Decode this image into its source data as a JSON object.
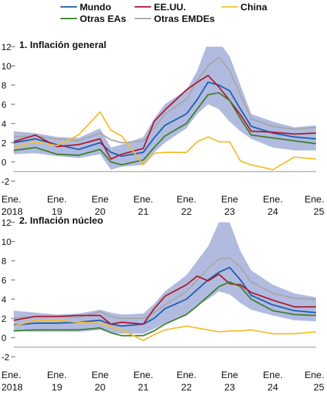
{
  "legend": {
    "world": "Mundo",
    "us": "EE.UU.",
    "china": "China",
    "other_aes": "Otras EAs",
    "other_emdes": "Otras EMDEs"
  },
  "colors": {
    "world": "#1f5fad",
    "us": "#b01b2e",
    "china": "#f2bf36",
    "other_aes": "#3f7f2f",
    "other_emdes": "#a7a7a7",
    "band": "#b1bbe0"
  },
  "x_ticks": [
    {
      "month": "Ene.",
      "year": "2018"
    },
    {
      "month": "Ene.",
      "year": "19"
    },
    {
      "month": "Ene",
      "year": "20"
    },
    {
      "month": "Ene.",
      "year": "21"
    },
    {
      "month": "Ene.",
      "year": "22"
    },
    {
      "month": "Ene",
      "year": "23"
    },
    {
      "month": "Ene.",
      "year": "24"
    },
    {
      "month": "Ene.",
      "year": "25"
    }
  ],
  "chart_data": [
    {
      "type": "line",
      "title": "1. Inflación general",
      "x": [
        "2018-01",
        "2018-07",
        "2019-01",
        "2019-07",
        "2020-01",
        "2020-04",
        "2020-07",
        "2021-01",
        "2021-04",
        "2021-07",
        "2022-01",
        "2022-04",
        "2022-07",
        "2022-10",
        "2023-01",
        "2023-04",
        "2023-07",
        "2024-01",
        "2024-07",
        "2025-01"
      ],
      "ylim": [
        -2,
        12
      ],
      "yticks": [
        -2,
        0,
        2,
        4,
        6,
        8,
        10,
        12
      ],
      "band": {
        "upper": [
          3.2,
          3.0,
          2.6,
          2.5,
          3.5,
          1.5,
          1.8,
          2.6,
          4.5,
          6.0,
          7.5,
          9.5,
          12.5,
          12.5,
          11.0,
          8.0,
          5.0,
          4.2,
          3.6,
          3.8
        ],
        "lower": [
          0.8,
          0.9,
          0.6,
          0.4,
          0.8,
          -0.8,
          -0.5,
          -0.3,
          1.0,
          2.0,
          3.5,
          5.0,
          6.0,
          5.5,
          4.2,
          3.2,
          2.4,
          1.5,
          1.2,
          1.2
        ]
      },
      "series": [
        {
          "name": "Mundo",
          "key": "world",
          "values": [
            2.0,
            2.4,
            1.8,
            1.3,
            2.0,
            1.0,
            0.6,
            1.0,
            2.5,
            3.8,
            5.0,
            6.5,
            8.3,
            8.0,
            7.4,
            5.5,
            3.7,
            3.0,
            2.6,
            2.4
          ]
        },
        {
          "name": "EE.UU.",
          "key": "us",
          "values": [
            2.1,
            2.8,
            1.6,
            1.8,
            2.4,
            0.3,
            0.8,
            1.4,
            4.2,
            5.4,
            7.5,
            8.3,
            9.0,
            7.8,
            6.4,
            4.9,
            3.2,
            3.1,
            2.9,
            3.0
          ]
        },
        {
          "name": "China",
          "key": "china",
          "values": [
            1.5,
            2.1,
            1.7,
            2.8,
            5.2,
            3.3,
            2.7,
            -0.3,
            0.9,
            1.0,
            1.0,
            2.1,
            2.6,
            2.1,
            2.1,
            0.1,
            -0.3,
            -0.8,
            0.5,
            0.3
          ]
        },
        {
          "name": "Otras EAs",
          "key": "other_aes",
          "values": [
            1.2,
            1.5,
            0.8,
            0.7,
            1.3,
            0.0,
            -0.3,
            0.2,
            1.5,
            2.7,
            4.0,
            5.5,
            7.0,
            7.2,
            6.4,
            4.5,
            2.8,
            2.5,
            2.2,
            1.9
          ]
        },
        {
          "name": "Otras EMDEs",
          "key": "other_emdes",
          "values": [
            2.6,
            2.7,
            2.4,
            2.2,
            3.0,
            2.3,
            2.0,
            2.2,
            3.5,
            5.0,
            6.5,
            8.5,
            10.0,
            10.9,
            9.5,
            7.0,
            4.5,
            3.7,
            3.4,
            3.6
          ]
        }
      ]
    },
    {
      "type": "line",
      "title": "2. Inflación núcleo",
      "x": [
        "2018-01",
        "2018-07",
        "2019-01",
        "2019-07",
        "2020-01",
        "2020-04",
        "2020-07",
        "2021-01",
        "2021-04",
        "2021-07",
        "2022-01",
        "2022-04",
        "2022-07",
        "2022-10",
        "2023-01",
        "2023-04",
        "2023-07",
        "2024-01",
        "2024-07",
        "2025-01"
      ],
      "ylim": [
        -2,
        12
      ],
      "yticks": [
        -2,
        0,
        2,
        4,
        6,
        8,
        10,
        12
      ],
      "band": {
        "upper": [
          2.8,
          2.6,
          2.4,
          2.5,
          2.9,
          2.6,
          2.4,
          2.5,
          3.5,
          4.8,
          6.5,
          8.0,
          9.5,
          12.0,
          12.0,
          9.0,
          7.0,
          5.5,
          4.6,
          4.2
        ],
        "lower": [
          0.7,
          0.6,
          0.6,
          0.6,
          0.8,
          0.5,
          0.4,
          0.4,
          0.9,
          1.5,
          2.3,
          3.3,
          4.0,
          4.8,
          4.5,
          3.6,
          2.9,
          2.3,
          1.8,
          1.7
        ]
      },
      "series": [
        {
          "name": "Mundo",
          "key": "world",
          "values": [
            1.3,
            1.5,
            1.5,
            1.6,
            1.8,
            1.4,
            1.2,
            1.4,
            2.0,
            3.0,
            4.0,
            5.0,
            6.0,
            6.8,
            7.3,
            6.0,
            4.4,
            3.4,
            2.8,
            2.6
          ]
        },
        {
          "name": "EE.UU.",
          "key": "us",
          "values": [
            1.8,
            2.2,
            2.2,
            2.3,
            2.3,
            1.4,
            1.6,
            1.4,
            3.0,
            4.3,
            5.5,
            6.4,
            5.9,
            6.6,
            5.6,
            5.5,
            4.7,
            3.9,
            3.2,
            3.2
          ]
        },
        {
          "name": "China",
          "key": "china",
          "values": [
            1.2,
            1.8,
            1.8,
            1.6,
            1.5,
            1.1,
            0.8,
            -0.3,
            0.3,
            0.8,
            1.2,
            1.0,
            0.8,
            0.6,
            0.7,
            0.7,
            0.8,
            0.4,
            0.4,
            0.6
          ]
        },
        {
          "name": "Otras EAs",
          "key": "other_aes",
          "values": [
            0.7,
            0.8,
            0.8,
            0.8,
            1.0,
            0.5,
            0.2,
            0.2,
            0.7,
            1.4,
            2.4,
            3.3,
            4.3,
            5.3,
            5.8,
            5.3,
            4.0,
            2.8,
            2.4,
            2.3
          ]
        },
        {
          "name": "Otras EMDEs",
          "key": "other_emdes",
          "values": [
            2.0,
            2.2,
            2.2,
            2.1,
            2.7,
            2.2,
            2.0,
            2.0,
            2.6,
            3.4,
            4.8,
            6.0,
            7.2,
            8.2,
            8.3,
            7.3,
            5.8,
            4.6,
            4.1,
            4.0
          ]
        }
      ]
    }
  ]
}
